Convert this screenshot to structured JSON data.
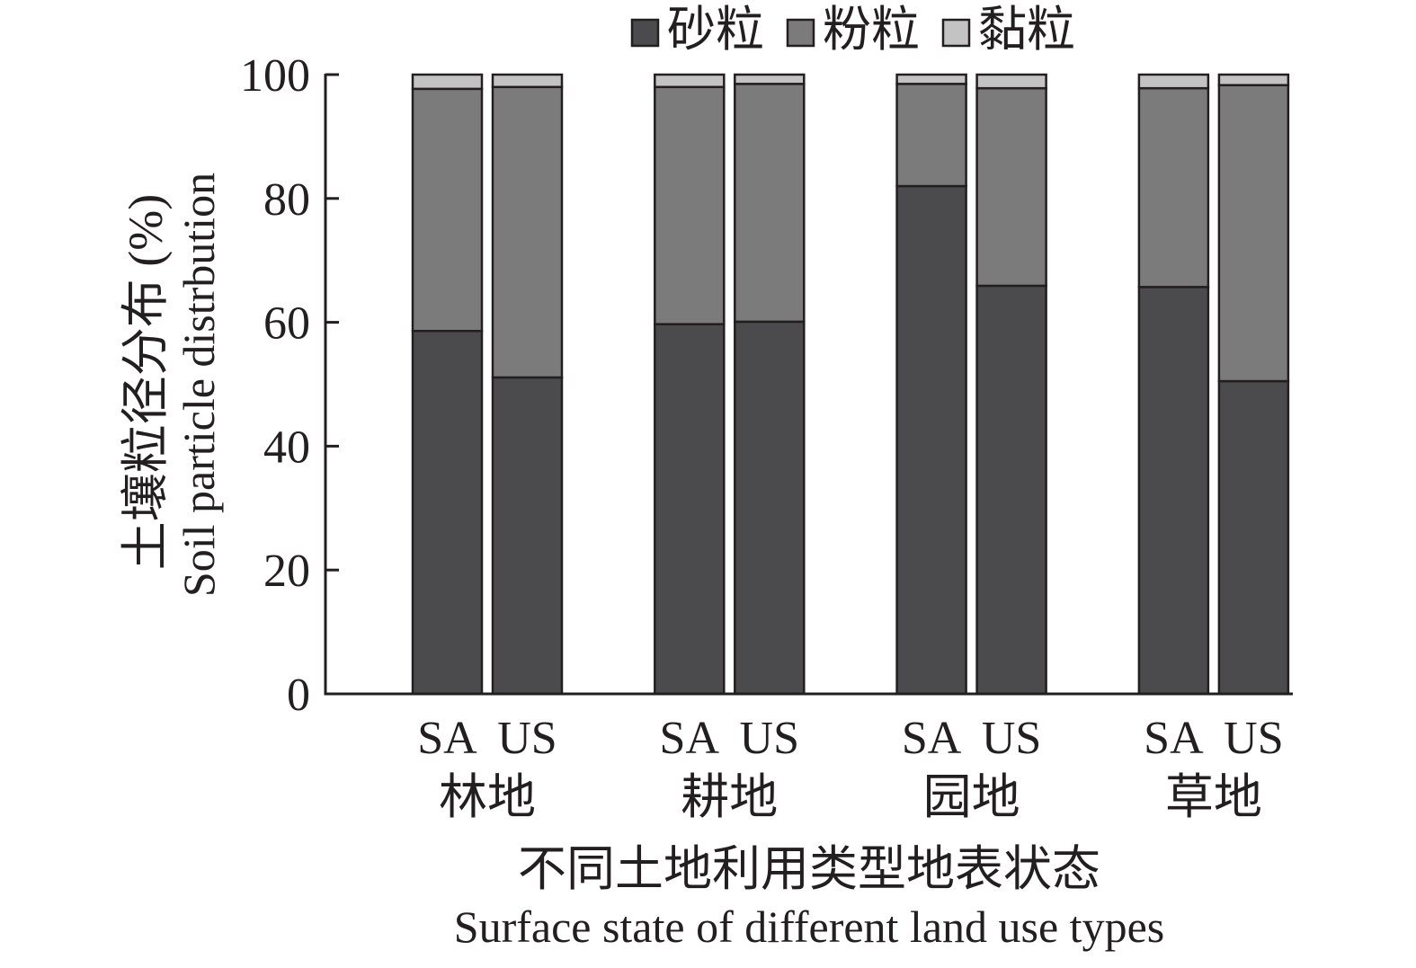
{
  "chart_data": {
    "type": "bar",
    "stacked": true,
    "groups": [
      "林地",
      "耕地",
      "园地",
      "草地"
    ],
    "categories": [
      "SA",
      "US",
      "SA",
      "US",
      "SA",
      "US",
      "SA",
      "US"
    ],
    "series": [
      {
        "name": "砂粒",
        "color": "#4b4a4c",
        "values": [
          58.6,
          51.1,
          59.7,
          60.1,
          82.0,
          65.9,
          65.7,
          50.5
        ]
      },
      {
        "name": "粉粒",
        "color": "#7c7b7c",
        "values": [
          39.1,
          46.9,
          38.3,
          38.4,
          16.5,
          31.9,
          32.1,
          47.8
        ]
      },
      {
        "name": "黏粒",
        "color": "#c3c3c3",
        "values": [
          2.3,
          2.0,
          2.0,
          1.5,
          1.5,
          2.2,
          2.2,
          1.7
        ]
      }
    ],
    "ylabel": [
      "土壤粒径分布 (%)",
      "Soil particle distrbution"
    ],
    "xlabel": [
      "不同土地利用类型地表状态",
      "Surface state of different land use types"
    ],
    "ylim": [
      0,
      100
    ],
    "yticks": [
      0,
      20,
      40,
      60,
      80,
      100
    ],
    "grid": false,
    "legend": "top-center"
  }
}
